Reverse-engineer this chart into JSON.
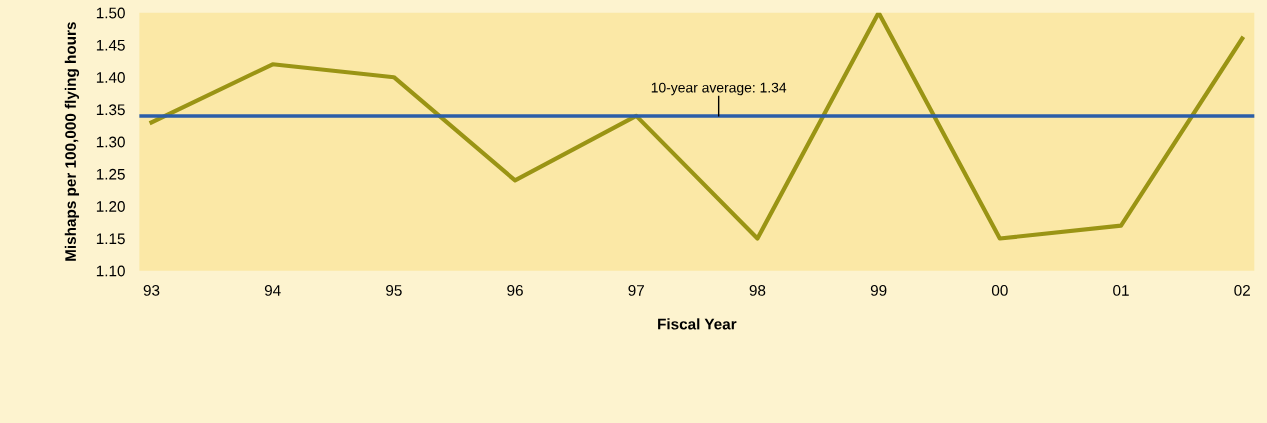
{
  "chart_data": {
    "type": "line",
    "xlabel": "Fiscal Year",
    "ylabel": "Mishaps per 100,000 flying hours",
    "categories": [
      "93",
      "94",
      "95",
      "96",
      "97",
      "98",
      "99",
      "00",
      "01",
      "02"
    ],
    "series": [
      {
        "color": "#9a9414",
        "values": [
          1.33,
          1.42,
          1.4,
          1.24,
          1.34,
          1.15,
          1.5,
          1.15,
          1.17,
          1.46
        ]
      }
    ],
    "ylim": [
      1.1,
      1.5
    ],
    "yticks": [
      {
        "value": 1.1,
        "label": "1.10"
      },
      {
        "value": 1.15,
        "label": "1.15"
      },
      {
        "value": 1.2,
        "label": "1.20"
      },
      {
        "value": 1.25,
        "label": "1.25"
      },
      {
        "value": 1.3,
        "label": "1.30"
      },
      {
        "value": 1.35,
        "label": "1.35"
      },
      {
        "value": 1.4,
        "label": "1.40"
      },
      {
        "value": 1.45,
        "label": "1.45"
      },
      {
        "value": 1.5,
        "label": "1.50"
      }
    ],
    "ref_lines": [
      {
        "axis": "y",
        "value": 1.34,
        "label": "10-year average: 1.34",
        "color": "#2b5ea8"
      }
    ],
    "grid": false,
    "legend": false,
    "marker": "none",
    "line_style": "solid"
  }
}
